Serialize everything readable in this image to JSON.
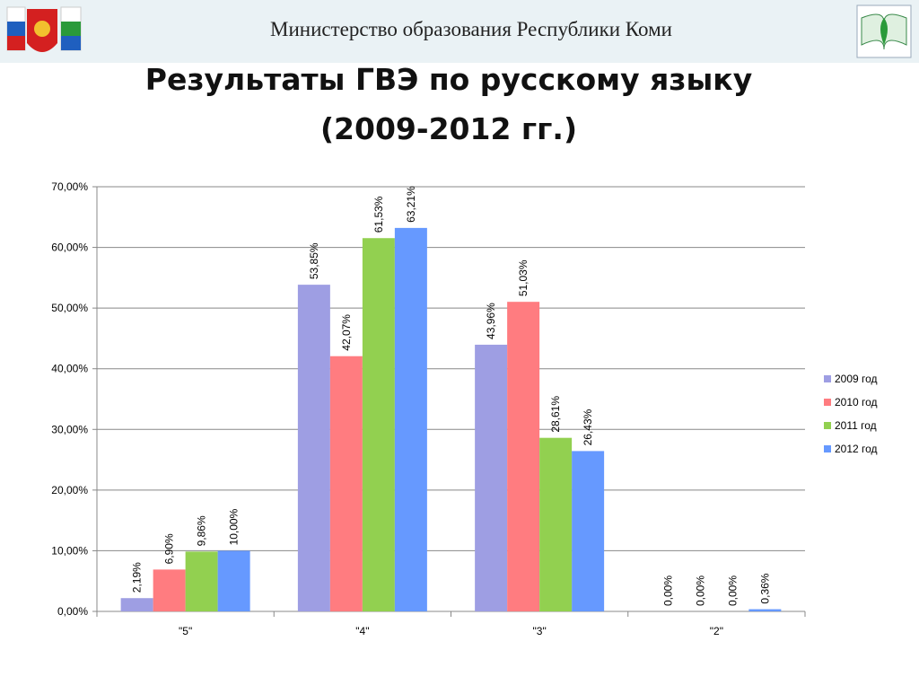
{
  "header": {
    "text": "Министерство  образования Республики  Коми"
  },
  "chart_data": {
    "type": "bar",
    "title": [
      "Результаты ГВЭ по русскому языку",
      "(2009-2012 гг.)"
    ],
    "categories": [
      "\"5\"",
      "\"4\"",
      "\"3\"",
      "\"2\""
    ],
    "series": [
      {
        "name": "2009 год",
        "color": "#9e9ee3",
        "values": [
          2.19,
          53.85,
          43.96,
          0
        ],
        "value_labels": [
          "2,19%",
          "53,85%",
          "43,96%",
          "0,00%"
        ]
      },
      {
        "name": "2010 год",
        "color": "#ff7c80",
        "values": [
          6.9,
          42.07,
          51.03,
          0
        ],
        "value_labels": [
          "6,90%",
          "42,07%",
          "51,03%",
          "0,00%"
        ]
      },
      {
        "name": "2011 год",
        "color": "#92d050",
        "values": [
          9.86,
          61.53,
          28.61,
          0
        ],
        "value_labels": [
          "9,86%",
          "61,53%",
          "28,61%",
          "0,00%"
        ]
      },
      {
        "name": "2012 год",
        "color": "#6699ff",
        "values": [
          10,
          63.21,
          26.43,
          0.36
        ],
        "value_labels": [
          "10,00%",
          "63,21%",
          "26,43%",
          "0,36%"
        ]
      }
    ],
    "ylim": [
      0,
      70
    ],
    "yticks": [
      {
        "value": 0,
        "label": "0,00%"
      },
      {
        "value": 10,
        "label": "10,00%"
      },
      {
        "value": 20,
        "label": "20,00%"
      },
      {
        "value": 30,
        "label": "30,00%"
      },
      {
        "value": 40,
        "label": "40,00%"
      },
      {
        "value": 50,
        "label": "50,00%"
      },
      {
        "value": 60,
        "label": "60,00%"
      },
      {
        "value": 70,
        "label": "70,00%"
      }
    ],
    "grid": true,
    "legend": "right"
  }
}
